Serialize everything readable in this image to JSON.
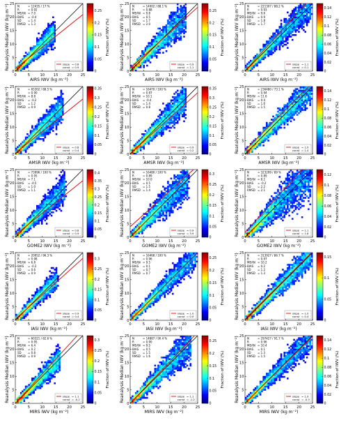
{
  "figure": {
    "ylabel": "Reanalysis Median IWV (kg m⁻²)",
    "colorbar_label": "Fraction of IWV (%)",
    "legend_slope": "slope",
    "legend_const": "const",
    "stat_keys": [
      "N",
      "R",
      "MEAN",
      "BIAS",
      "SD",
      "RMSD"
    ],
    "axis_ticks": [
      0,
      5,
      10,
      15,
      20,
      25
    ],
    "colormap": [
      "#00007f",
      "#0000ff",
      "#0080ff",
      "#00ffff",
      "#80ff80",
      "#ffff00",
      "#ff8000",
      "#ff0000",
      "#7f0000"
    ]
  },
  "chart_data": [
    {
      "type": "heatmap",
      "row": 0,
      "col": 0,
      "xlabel": "AIRS IWV (kg m⁻²)",
      "xlim": [
        0,
        25
      ],
      "ylim": [
        0,
        25
      ],
      "stats": {
        "N": "= 12435 / 17 %",
        "R": "= 0.92",
        "MEAN": "= 7.0",
        "BIAS": "= -0.4",
        "SD": "= 1.4",
        "RMSD": "= 1.3"
      },
      "slope": "= 0.8",
      "const": "= 0.9",
      "colorbar_ticks": [
        0,
        0.05,
        0.1,
        0.15,
        0.2,
        0.25
      ],
      "vmax": 0.28,
      "extent": 14,
      "spread": 0.16,
      "fit": [
        0.8,
        0.9
      ]
    },
    {
      "type": "heatmap",
      "row": 0,
      "col": 1,
      "xlabel": "AIRS IWV (kg m⁻²)",
      "xlim": [
        0,
        25
      ],
      "ylim": [
        0,
        25
      ],
      "stats": {
        "N": "= 14002 / 88.1 %",
        "R": "= 0.88",
        "MEAN": "= 9.8",
        "BIAS": "= 0.5",
        "SD": "= 1.7",
        "RMSD": "= 2.0"
      },
      "slope": "= 0.9",
      "const": "= 1.1",
      "colorbar_ticks": [
        0,
        0.05,
        0.1,
        0.15,
        0.2,
        0.25
      ],
      "vmax": 0.28,
      "extent": 20,
      "spread": 0.17,
      "fit": [
        0.9,
        1.1
      ]
    },
    {
      "type": "heatmap",
      "row": 0,
      "col": 2,
      "xlabel": "AIRS IWV (kg m⁻²)",
      "xlim": [
        0,
        25
      ],
      "ylim": [
        0,
        25
      ],
      "stats": {
        "N": "= 221307 / 88.2 %",
        "R": "= 0.93",
        "MEAN": "= 9.6",
        "BIAS": "= 0.9",
        "SD": "= 1.8",
        "RMSD": "= 1.7"
      },
      "slope": "= 1.1",
      "const": "= 0.1",
      "colorbar_ticks": [
        0,
        0.02,
        0.04,
        0.06,
        0.08,
        0.1,
        0.12,
        0.14
      ],
      "vmax": 0.15,
      "extent": 24,
      "spread": 0.13,
      "fit": [
        1.1,
        0.1
      ]
    },
    {
      "type": "heatmap",
      "row": 1,
      "col": 0,
      "xlabel": "AMSR IWV (kg m⁻²)",
      "xlim": [
        0,
        25
      ],
      "ylim": [
        0,
        25
      ],
      "stats": {
        "N": "= 65302 / 88.5 %",
        "R": "= 0.90",
        "MEAN": "= 8.8",
        "BIAS": "= -0.2",
        "SD": "= 1.2",
        "RMSD": "= 0.9"
      },
      "slope": "= 0.8",
      "const": "= 0.4",
      "colorbar_ticks": [
        0,
        0.05,
        0.1,
        0.15,
        0.2,
        0.25,
        0.3,
        0.35
      ],
      "vmax": 0.36,
      "extent": 17,
      "spread": 0.16,
      "fit": [
        0.8,
        0.4
      ]
    },
    {
      "type": "heatmap",
      "row": 1,
      "col": 1,
      "xlabel": "AMSR IWV (kg m⁻²)",
      "xlim": [
        0,
        25
      ],
      "ylim": [
        0,
        25
      ],
      "stats": {
        "N": "= 16470 / 100 %",
        "R": "= 0.87",
        "MEAN": "= 10.1",
        "BIAS": "= -0.4",
        "SD": "= 1.4",
        "RMSD": "= 0.8"
      },
      "slope": "= 0.9",
      "const": "= 0.2",
      "colorbar_ticks": [
        0,
        0.05,
        0.1,
        0.15,
        0.2,
        0.25,
        0.3,
        0.35
      ],
      "vmax": 0.36,
      "extent": 20,
      "spread": 0.15,
      "fit": [
        0.9,
        0.2
      ]
    },
    {
      "type": "heatmap",
      "row": 1,
      "col": 2,
      "xlabel": "AMSR IWV (kg m⁻²)",
      "xlim": [
        0,
        25
      ],
      "ylim": [
        0,
        25
      ],
      "stats": {
        "N": "= 236480 / 73.1 %",
        "R": "= 0.94",
        "MEAN": "= 11.6",
        "BIAS": "= 0.4",
        "SD": "= 1.6",
        "RMSD": "= 1.5"
      },
      "slope": "= 1.0",
      "const": "= 1.4",
      "colorbar_ticks": [
        0,
        0.02,
        0.04,
        0.06,
        0.08,
        0.1,
        0.12,
        0.14
      ],
      "vmax": 0.15,
      "extent": 24,
      "spread": 0.12,
      "fit": [
        1.0,
        1.4
      ]
    },
    {
      "type": "heatmap",
      "row": 2,
      "col": 0,
      "xlabel": "GOME2 IWV (kg m⁻²)",
      "xlim": [
        0,
        25
      ],
      "ylim": [
        0,
        25
      ],
      "stats": {
        "N": "= 73996 / 100 %",
        "R": "= 0.95",
        "MEAN": "= 7.1",
        "BIAS": "= -0.5",
        "SD": "= 1.0",
        "RMSD": "= 1.1"
      },
      "slope": "= 0.8",
      "const": "= 0.9",
      "colorbar_ticks": [
        0,
        0.05,
        0.1,
        0.15,
        0.2,
        0.25,
        0.3,
        0.35,
        0.4
      ],
      "vmax": 0.42,
      "extent": 18,
      "spread": 0.16,
      "fit": [
        0.8,
        0.9
      ]
    },
    {
      "type": "heatmap",
      "row": 2,
      "col": 1,
      "xlabel": "GOME2 IWV (kg m⁻²)",
      "xlim": [
        0,
        25
      ],
      "ylim": [
        0,
        25
      ],
      "stats": {
        "N": "= 16480 / 100 %",
        "R": "= 0.89",
        "MEAN": "= 10.0",
        "BIAS": "= 0.5",
        "SD": "= 1.5",
        "RMSD": "= 1.4"
      },
      "slope": "= 0.9",
      "const": "= 3.9",
      "colorbar_ticks": [
        0,
        0.05,
        0.1,
        0.15,
        0.2,
        0.25,
        0.3
      ],
      "vmax": 0.32,
      "extent": 21,
      "spread": 0.18,
      "fit": [
        0.9,
        3.9
      ]
    },
    {
      "type": "heatmap",
      "row": 2,
      "col": 2,
      "xlabel": "GOME2 IWV (kg m⁻²)",
      "xlim": [
        0,
        25
      ],
      "ylim": [
        0,
        25
      ],
      "stats": {
        "N": "= 323299 / 89 %",
        "R": "= 0.89",
        "MEAN": "= 8.2",
        "BIAS": "= -0.2",
        "SD": "= 2.2",
        "RMSD": "= 2.1"
      },
      "slope": "= 1.1",
      "const": "= 1.8",
      "colorbar_ticks": [
        0,
        0.02,
        0.04,
        0.06,
        0.08,
        0.1,
        0.12
      ],
      "vmax": 0.13,
      "extent": 24,
      "spread": 0.22,
      "fit": [
        1.1,
        1.8
      ]
    },
    {
      "type": "heatmap",
      "row": 3,
      "col": 0,
      "xlabel": "IASI IWV (kg m⁻²)",
      "xlim": [
        0,
        25
      ],
      "ylim": [
        0,
        25
      ],
      "stats": {
        "N": "= 20952 / 96.3 %",
        "R": "= 0.98",
        "MEAN": "= 6.8",
        "BIAS": "= -0.2",
        "SD": "= 0.6",
        "RMSD": "= 0.9"
      },
      "slope": "= 0.9",
      "const": "= 0.4",
      "colorbar_ticks": [
        0,
        0.05,
        0.1,
        0.15,
        0.2,
        0.25,
        0.3
      ],
      "vmax": 0.33,
      "extent": 15,
      "spread": 0.12,
      "fit": [
        0.9,
        0.4
      ]
    },
    {
      "type": "heatmap",
      "row": 3,
      "col": 1,
      "xlabel": "IASI IWV (kg m⁻²)",
      "xlim": [
        0,
        25
      ],
      "ylim": [
        0,
        25
      ],
      "stats": {
        "N": "= 16468 / 100 %",
        "R": "= 0.96",
        "MEAN": "= 9.5",
        "BIAS": "= 0.1",
        "SD": "= 0.7",
        "RMSD": "= 0.7"
      },
      "slope": "= 1.0",
      "const": "= 0.0",
      "colorbar_ticks": [
        0,
        0.05,
        0.1,
        0.15,
        0.2,
        0.25
      ],
      "vmax": 0.27,
      "extent": 24,
      "spread": 0.11,
      "fit": [
        1.0,
        0.0
      ]
    },
    {
      "type": "heatmap",
      "row": 3,
      "col": 2,
      "xlabel": "IASI IWV (kg m⁻²)",
      "xlim": [
        0,
        25
      ],
      "ylim": [
        0,
        25
      ],
      "stats": {
        "N": "= 313927 / 86.7 %",
        "R": "= 0.97",
        "MEAN": "= 10.2",
        "BIAS": "= 0.2",
        "SD": "= 1.2",
        "RMSD": "= 1.3"
      },
      "slope": "= 1.0",
      "const": "= 0.4",
      "colorbar_ticks": [
        0,
        0.05,
        0.1,
        0.15
      ],
      "vmax": 0.16,
      "extent": 24,
      "spread": 0.11,
      "fit": [
        1.0,
        0.4
      ]
    },
    {
      "type": "heatmap",
      "row": 4,
      "col": 0,
      "xlabel": "MIRS IWV (kg m⁻²)",
      "xlim": [
        0,
        25
      ],
      "ylim": [
        0,
        25
      ],
      "stats": {
        "N": "= 60321 / 82.6 %",
        "R": "= 0.95",
        "MEAN": "= 6.4",
        "BIAS": "= 0.2",
        "SD": "= 0.8",
        "RMSD": "= 0.9"
      },
      "slope": "= 1.1",
      "const": "= -0.2",
      "colorbar_ticks": [
        0,
        0.05,
        0.1,
        0.15,
        0.2,
        0.25,
        0.3
      ],
      "vmax": 0.32,
      "extent": 16,
      "spread": 0.14,
      "fit": [
        1.1,
        -0.2
      ]
    },
    {
      "type": "heatmap",
      "row": 4,
      "col": 1,
      "xlabel": "MIRS IWV (kg m⁻²)",
      "xlim": [
        0,
        25
      ],
      "ylim": [
        0,
        25
      ],
      "stats": {
        "N": "= 14887 / 90.4 %",
        "R": "= 0.90",
        "MEAN": "= 9.5",
        "BIAS": "= 0.5",
        "SD": "= 1.5",
        "RMSD": "= 1.6"
      },
      "slope": "= 1.1",
      "const": "= -1.2",
      "colorbar_ticks": [
        0,
        0.05,
        0.1,
        0.15,
        0.2,
        0.25
      ],
      "vmax": 0.27,
      "extent": 22,
      "spread": 0.16,
      "fit": [
        1.1,
        -1.2
      ]
    },
    {
      "type": "heatmap",
      "row": 4,
      "col": 2,
      "xlabel": "MIRS IWV (kg m⁻²)",
      "xlim": [
        0,
        25
      ],
      "ylim": [
        0,
        25
      ],
      "stats": {
        "N": "= 297427 / 91.7 %",
        "R": "= 0.96",
        "MEAN": "= 10.4",
        "BIAS": "= 0.1",
        "SD": "= 1.3",
        "RMSD": "= 1.5"
      },
      "slope": "= 1.0",
      "const": "= -0.3",
      "colorbar_ticks": [
        0,
        0.02,
        0.04,
        0.06,
        0.08,
        0.1,
        0.12,
        0.14
      ],
      "vmax": 0.15,
      "extent": 24,
      "spread": 0.12,
      "fit": [
        1.0,
        -0.3
      ]
    }
  ]
}
